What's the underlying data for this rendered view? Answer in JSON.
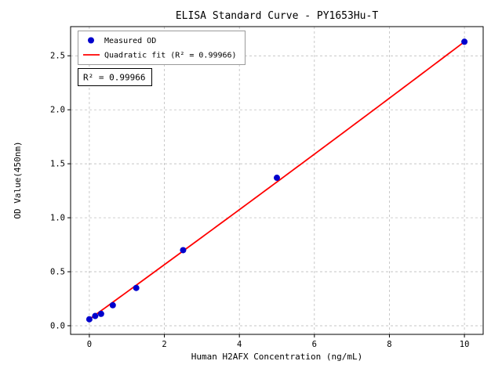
{
  "window": {
    "title": "ELISA Standard Curve - PY1653Hu-T"
  },
  "chart_data": {
    "type": "scatter",
    "title": "ELISA Standard Curve - PY1653Hu-T",
    "xlabel": "Human H2AFX Concentration (ng/mL)",
    "ylabel": "OD Value(450nm)",
    "xlim": [
      -0.5,
      10.5
    ],
    "ylim": [
      -0.08,
      2.77
    ],
    "xticks": [
      0,
      2,
      4,
      6,
      8,
      10
    ],
    "xtick_labels": [
      "0",
      "2",
      "4",
      "6",
      "8",
      "10"
    ],
    "yticks": [
      0.0,
      0.5,
      1.0,
      1.5,
      2.0,
      2.5
    ],
    "ytick_labels": [
      "0.0",
      "0.5",
      "1.0",
      "1.5",
      "2.0",
      "2.5"
    ],
    "grid": true,
    "series": [
      {
        "name": "Measured OD",
        "type": "scatter",
        "color": "#0000cd",
        "x": [
          0,
          0.156,
          0.313,
          0.625,
          1.25,
          2.5,
          5,
          10
        ],
        "y": [
          0.06,
          0.09,
          0.11,
          0.19,
          0.35,
          0.7,
          1.37,
          2.63
        ]
      },
      {
        "name": "Quadratic fit (R² = 0.99966)",
        "type": "line",
        "color": "#ff0000",
        "fit_coefficients": [
          0.06,
          0.2515,
          0.00055
        ],
        "x_range": [
          0,
          10
        ]
      }
    ],
    "legend": {
      "position": "upper-left",
      "entries": [
        "Measured OD",
        "Quadratic fit (R² = 0.99966)"
      ]
    },
    "annotation": "R² = 0.99966",
    "r_squared": 0.99966,
    "colors": {
      "point": "#0000cd",
      "line": "#ff0000",
      "grid": "#b3b3b3",
      "frame": "#000000"
    }
  }
}
